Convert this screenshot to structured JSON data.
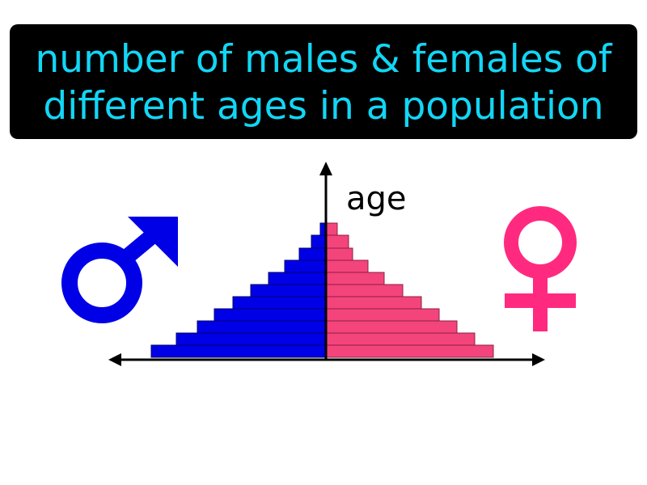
{
  "title": {
    "lines": [
      "number of males & females of",
      "different ages in a population"
    ]
  },
  "diagram": {
    "axis_label": "age"
  }
}
